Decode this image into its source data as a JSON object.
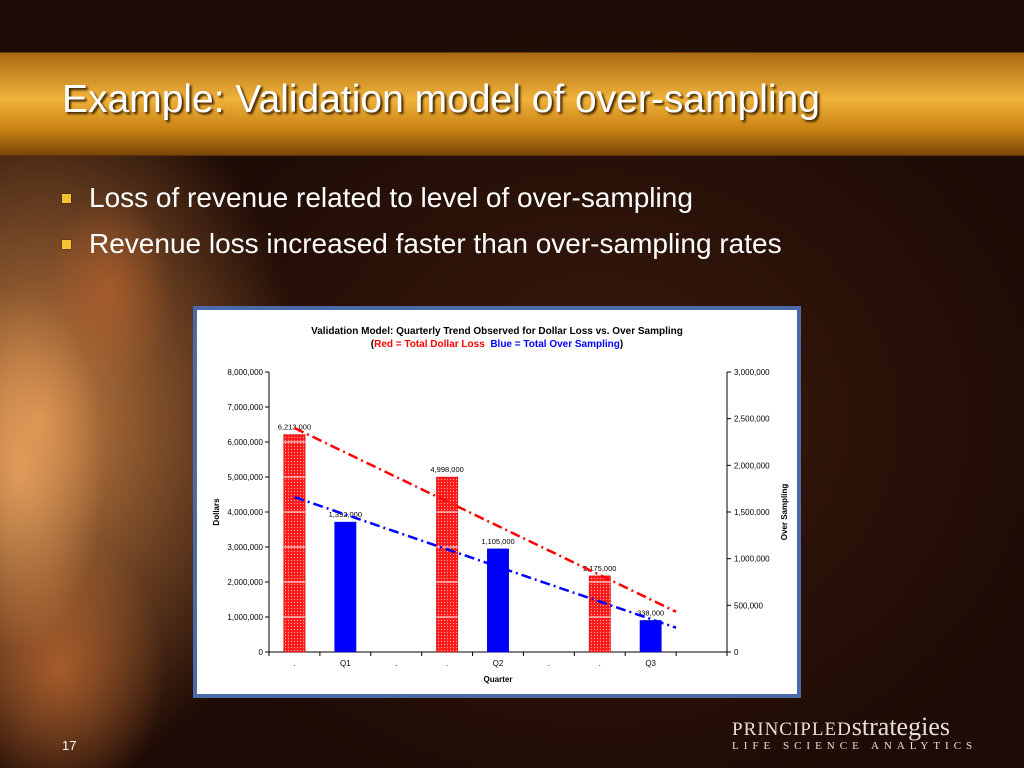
{
  "slide": {
    "title": "Example: Validation model of over-sampling",
    "bullets": [
      "Loss of revenue related to level of over-sampling",
      "Revenue loss increased faster than over-sampling rates"
    ],
    "page_number": "17"
  },
  "logo": {
    "main_caps": "PRINCIPLED",
    "main_rest": "strategies",
    "sub": "LIFE SCIENCE ANALYTICS"
  },
  "colors": {
    "title_bar": "#f0b23a",
    "bullet": "#f2c230",
    "dollar_loss": "#ff0000",
    "over_sampling": "#0000ff",
    "frame": "#4a6aa8"
  },
  "chart_data": {
    "type": "bar",
    "title": "Validation Model:  Quarterly Trend Observed for Dollar Loss vs. Over Sampling",
    "subtitle_open": "(",
    "subtitle_red": "Red = Total Dollar Loss",
    "subtitle_blue": "Blue = Total Over Sampling",
    "subtitle_close": ")",
    "xlabel": "Quarter",
    "ylabel": "Dollars",
    "y2label": "Over Sampling",
    "categories": [
      ".",
      "Q1",
      ".",
      ".",
      "Q2",
      ".",
      ".",
      "Q3",
      ""
    ],
    "ylim": [
      0,
      8000000
    ],
    "y2lim": [
      0,
      3000000
    ],
    "y_ticks": [
      "0",
      "1,000,000",
      "2,000,000",
      "3,000,000",
      "4,000,000",
      "5,000,000",
      "6,000,000",
      "7,000,000",
      "8,000,000"
    ],
    "y2_ticks": [
      "0",
      "500,000",
      "1,000,000",
      "1,500,000",
      "2,000,000",
      "2,500,000",
      "3,000,000"
    ],
    "series": [
      {
        "name": "Total Dollar Loss",
        "axis": "left",
        "positions": [
          0,
          3,
          6
        ],
        "values": [
          6213000,
          4998000,
          2175000
        ],
        "labels": [
          "6,213,000",
          "4,998,000",
          "2,175,000"
        ]
      },
      {
        "name": "Total Over Sampling",
        "axis": "right",
        "positions": [
          1,
          4,
          7
        ],
        "values": [
          1392000,
          1105000,
          338000
        ],
        "labels": [
          "1,392,000",
          "1,105,000",
          "338,000"
        ]
      }
    ],
    "trendlines": [
      {
        "series": "Total Dollar Loss",
        "axis": "left",
        "from": [
          0,
          6400000
        ],
        "to": [
          8,
          1150000
        ]
      },
      {
        "series": "Total Over Sampling",
        "axis": "right",
        "from": [
          0,
          1660000
        ],
        "to": [
          8,
          260000
        ]
      }
    ],
    "grid": false,
    "legend": "none"
  }
}
